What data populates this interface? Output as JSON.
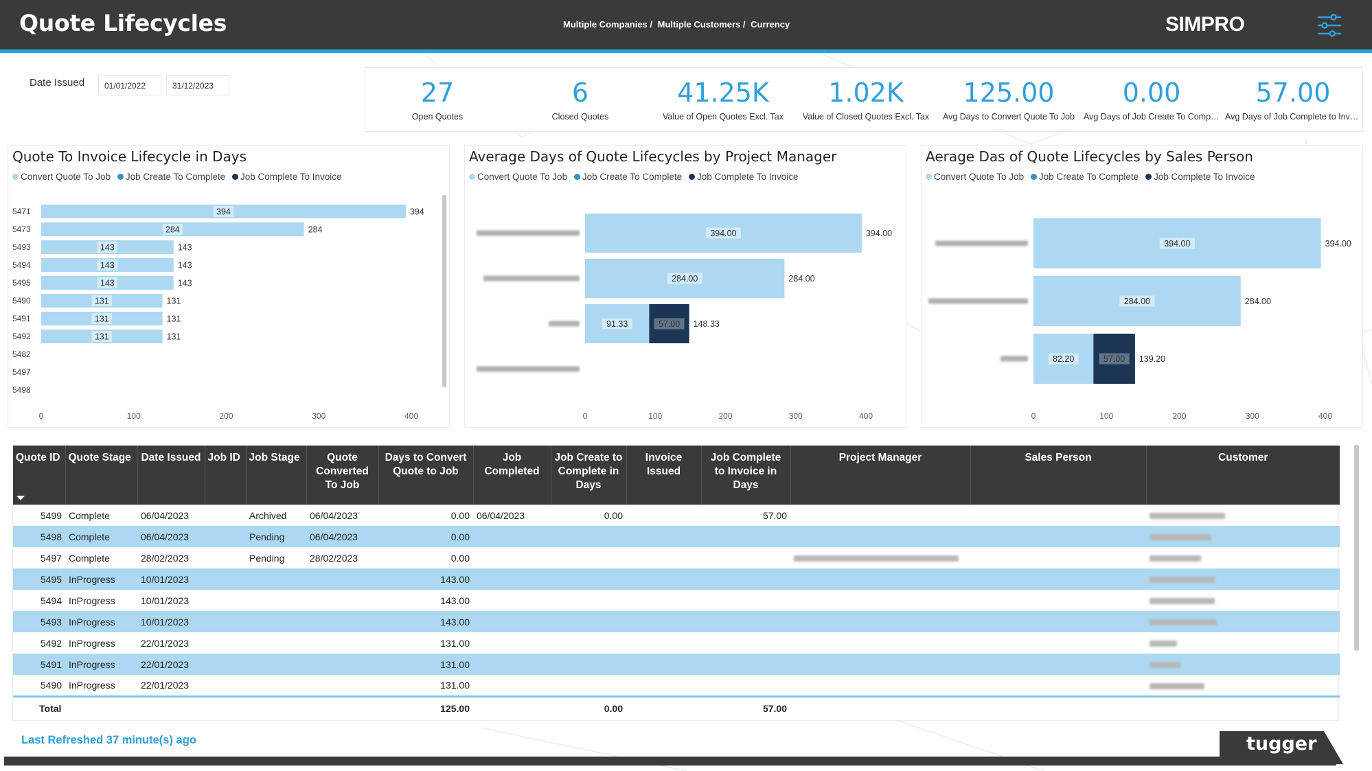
{
  "header": {
    "title": "Quote Lifecycles",
    "filters": [
      "Multiple Companies /",
      "Multiple Customers /",
      "Currency"
    ],
    "logo": "SIMPRO",
    "menu_icon": "sliders-icon"
  },
  "date_filter": {
    "label": "Date  Issued",
    "from": "01/01/2022",
    "to": "31/12/2023"
  },
  "kpis": [
    {
      "value": "27",
      "label": "Open Quotes"
    },
    {
      "value": "6",
      "label": "Closed Quotes"
    },
    {
      "value": "41.25K",
      "label": "Value of Open Quotes Excl. Tax"
    },
    {
      "value": "1.02K",
      "label": "Value of Closed Quotes Excl. Tax"
    },
    {
      "value": "125.00",
      "label": "Avg Days to Convert Quote To Job"
    },
    {
      "value": "0.00",
      "label": "Avg Days of Job Create To Complete"
    },
    {
      "value": "57.00",
      "label": "Avg Days of Job Complete to Invoice"
    }
  ],
  "legend": {
    "items": [
      "Convert Quote To Job",
      "Job Create To Complete",
      "Job Complete To Invoice"
    ],
    "colors": [
      "#acd8f1",
      "#3a8fc4",
      "#1c3554"
    ]
  },
  "chart_data": [
    {
      "type": "bar",
      "orientation": "horizontal",
      "stacked": true,
      "title": "Quote To Invoice Lifecycle in Days",
      "categories": [
        "5471",
        "5473",
        "5493",
        "5494",
        "5495",
        "5490",
        "5491",
        "5492",
        "5482",
        "5497",
        "5498"
      ],
      "series": [
        {
          "name": "Convert Quote To Job",
          "values": [
            394,
            284,
            143,
            143,
            143,
            131,
            131,
            131,
            0,
            0,
            0
          ]
        },
        {
          "name": "Job Create To Complete",
          "values": [
            0,
            0,
            0,
            0,
            0,
            0,
            0,
            0,
            0,
            0,
            0
          ]
        },
        {
          "name": "Job Complete To Invoice",
          "values": [
            0,
            0,
            0,
            0,
            0,
            0,
            0,
            0,
            0,
            0,
            0
          ]
        }
      ],
      "segment_labels": [
        "394",
        "284",
        "143",
        "143",
        "143",
        "131",
        "131",
        "131",
        "",
        "",
        ""
      ],
      "total_labels": [
        "394",
        "284",
        "143",
        "143",
        "143",
        "131",
        "131",
        "131",
        "",
        "",
        ""
      ],
      "xlim": [
        0,
        400
      ],
      "xticks": [
        "0",
        "100",
        "200",
        "300",
        "400"
      ]
    },
    {
      "type": "bar",
      "orientation": "horizontal",
      "stacked": true,
      "title": "Average Days of Quote Lifecycles by Project Manager",
      "categories_redacted": true,
      "series": [
        {
          "name": "Convert Quote To Job",
          "values": [
            394.0,
            284.0,
            91.33,
            0
          ]
        },
        {
          "name": "Job Create To Complete",
          "values": [
            0,
            0,
            0,
            0
          ]
        },
        {
          "name": "Job Complete To Invoice",
          "values": [
            0,
            0,
            57.0,
            0
          ]
        }
      ],
      "segment_labels": [
        [
          "394.00",
          "",
          ""
        ],
        [
          "284.00",
          "",
          ""
        ],
        [
          "91.33",
          "",
          "57.00"
        ],
        [
          "",
          "",
          ""
        ]
      ],
      "total_labels": [
        "394.00",
        "284.00",
        "148.33",
        ""
      ],
      "xlim": [
        0,
        400
      ],
      "xticks": [
        "0",
        "100",
        "200",
        "300",
        "400"
      ]
    },
    {
      "type": "bar",
      "orientation": "horizontal",
      "stacked": true,
      "title": "Aerage Das of Quote Lifecycles by Sales Person",
      "categories_redacted": true,
      "series": [
        {
          "name": "Convert Quote To Job",
          "values": [
            394.0,
            284.0,
            82.2
          ]
        },
        {
          "name": "Job Create To Complete",
          "values": [
            0,
            0,
            0
          ]
        },
        {
          "name": "Job Complete To Invoice",
          "values": [
            0,
            0,
            57.0
          ]
        }
      ],
      "segment_labels": [
        [
          "394.00",
          "",
          ""
        ],
        [
          "284.00",
          "",
          ""
        ],
        [
          "82.20",
          "",
          "57.00"
        ]
      ],
      "total_labels": [
        "394.00",
        "284.00",
        "139.20"
      ],
      "xlim": [
        0,
        400
      ],
      "xticks": [
        "0",
        "100",
        "200",
        "300",
        "400"
      ]
    }
  ],
  "table": {
    "columns": [
      "Quote ID",
      "Quote Stage",
      "Date Issued",
      "Job ID",
      "Job Stage",
      "Quote Converted To Job",
      "Days to Convert Quote to Job",
      "Job Completed",
      "Job Create to Complete in Days",
      "Invoice Issued",
      "Job Complete to Invoice in Days",
      "Project Manager",
      "Sales Person",
      "Customer"
    ],
    "rows": [
      {
        "quote_id": "5499",
        "stage": "Complete",
        "date_issued": "06/04/2023",
        "job_id": "",
        "job_stage": "Archived",
        "converted": "06/04/2023",
        "days_convert": "0.00",
        "job_completed": "06/04/2023",
        "create_complete": "0.00",
        "invoice_issued": "",
        "complete_invoice": "57.00",
        "pm_redacted": false,
        "customer_redacted": true
      },
      {
        "quote_id": "5498",
        "stage": "Complete",
        "date_issued": "06/04/2023",
        "job_id": "",
        "job_stage": "Pending",
        "converted": "06/04/2023",
        "days_convert": "0.00",
        "job_completed": "",
        "create_complete": "",
        "invoice_issued": "",
        "complete_invoice": "",
        "pm_redacted": false,
        "customer_redacted": true
      },
      {
        "quote_id": "5497",
        "stage": "Complete",
        "date_issued": "28/02/2023",
        "job_id": "",
        "job_stage": "Pending",
        "converted": "28/02/2023",
        "days_convert": "0.00",
        "job_completed": "",
        "create_complete": "",
        "invoice_issued": "",
        "complete_invoice": "",
        "pm_redacted": true,
        "customer_redacted": true
      },
      {
        "quote_id": "5495",
        "stage": "InProgress",
        "date_issued": "10/01/2023",
        "job_id": "",
        "job_stage": "",
        "converted": "",
        "days_convert": "143.00",
        "job_completed": "",
        "create_complete": "",
        "invoice_issued": "",
        "complete_invoice": "",
        "pm_redacted": false,
        "customer_redacted": true
      },
      {
        "quote_id": "5494",
        "stage": "InProgress",
        "date_issued": "10/01/2023",
        "job_id": "",
        "job_stage": "",
        "converted": "",
        "days_convert": "143.00",
        "job_completed": "",
        "create_complete": "",
        "invoice_issued": "",
        "complete_invoice": "",
        "pm_redacted": false,
        "customer_redacted": true
      },
      {
        "quote_id": "5493",
        "stage": "InProgress",
        "date_issued": "10/01/2023",
        "job_id": "",
        "job_stage": "",
        "converted": "",
        "days_convert": "143.00",
        "job_completed": "",
        "create_complete": "",
        "invoice_issued": "",
        "complete_invoice": "",
        "pm_redacted": false,
        "customer_redacted": true
      },
      {
        "quote_id": "5492",
        "stage": "InProgress",
        "date_issued": "22/01/2023",
        "job_id": "",
        "job_stage": "",
        "converted": "",
        "days_convert": "131.00",
        "job_completed": "",
        "create_complete": "",
        "invoice_issued": "",
        "complete_invoice": "",
        "pm_redacted": false,
        "customer_redacted": true
      },
      {
        "quote_id": "5491",
        "stage": "InProgress",
        "date_issued": "22/01/2023",
        "job_id": "",
        "job_stage": "",
        "converted": "",
        "days_convert": "131.00",
        "job_completed": "",
        "create_complete": "",
        "invoice_issued": "",
        "complete_invoice": "",
        "pm_redacted": false,
        "customer_redacted": true
      },
      {
        "quote_id": "5490",
        "stage": "InProgress",
        "date_issued": "22/01/2023",
        "job_id": "",
        "job_stage": "",
        "converted": "",
        "days_convert": "131.00",
        "job_completed": "",
        "create_complete": "",
        "invoice_issued": "",
        "complete_invoice": "",
        "pm_redacted": false,
        "customer_redacted": true
      }
    ],
    "total": {
      "label": "Total",
      "days_convert": "125.00",
      "create_complete": "0.00",
      "complete_invoice": "57.00"
    }
  },
  "footer": {
    "refreshed": "Last Refreshed 37 minute(s) ago",
    "brand": "tugger"
  }
}
